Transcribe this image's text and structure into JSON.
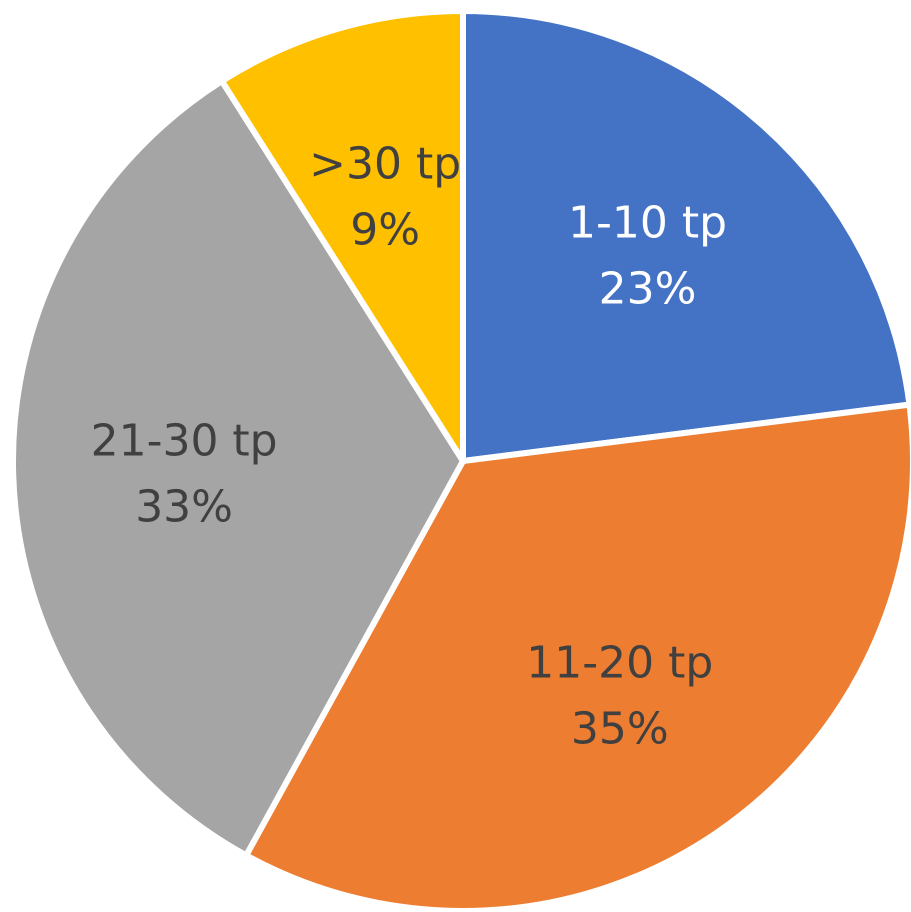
{
  "chart_data": {
    "type": "pie",
    "title": "",
    "start_angle_deg": 0,
    "direction": "clockwise",
    "slices": [
      {
        "label": "1-10 tp",
        "value": 23,
        "percent_label": "23%",
        "color": "#4472C4",
        "label_color": "#ffffff"
      },
      {
        "label": "11-20 tp",
        "value": 35,
        "percent_label": "35%",
        "color": "#ED7D31",
        "label_color": "#404040"
      },
      {
        "label": "21-30 tp",
        "value": 33,
        "percent_label": "33%",
        "color": "#A5A5A5",
        "label_color": "#404040"
      },
      {
        "label": ">30 tp",
        "value": 9,
        "percent_label": "9%",
        "color": "#FFC000",
        "label_color": "#404040"
      }
    ]
  }
}
